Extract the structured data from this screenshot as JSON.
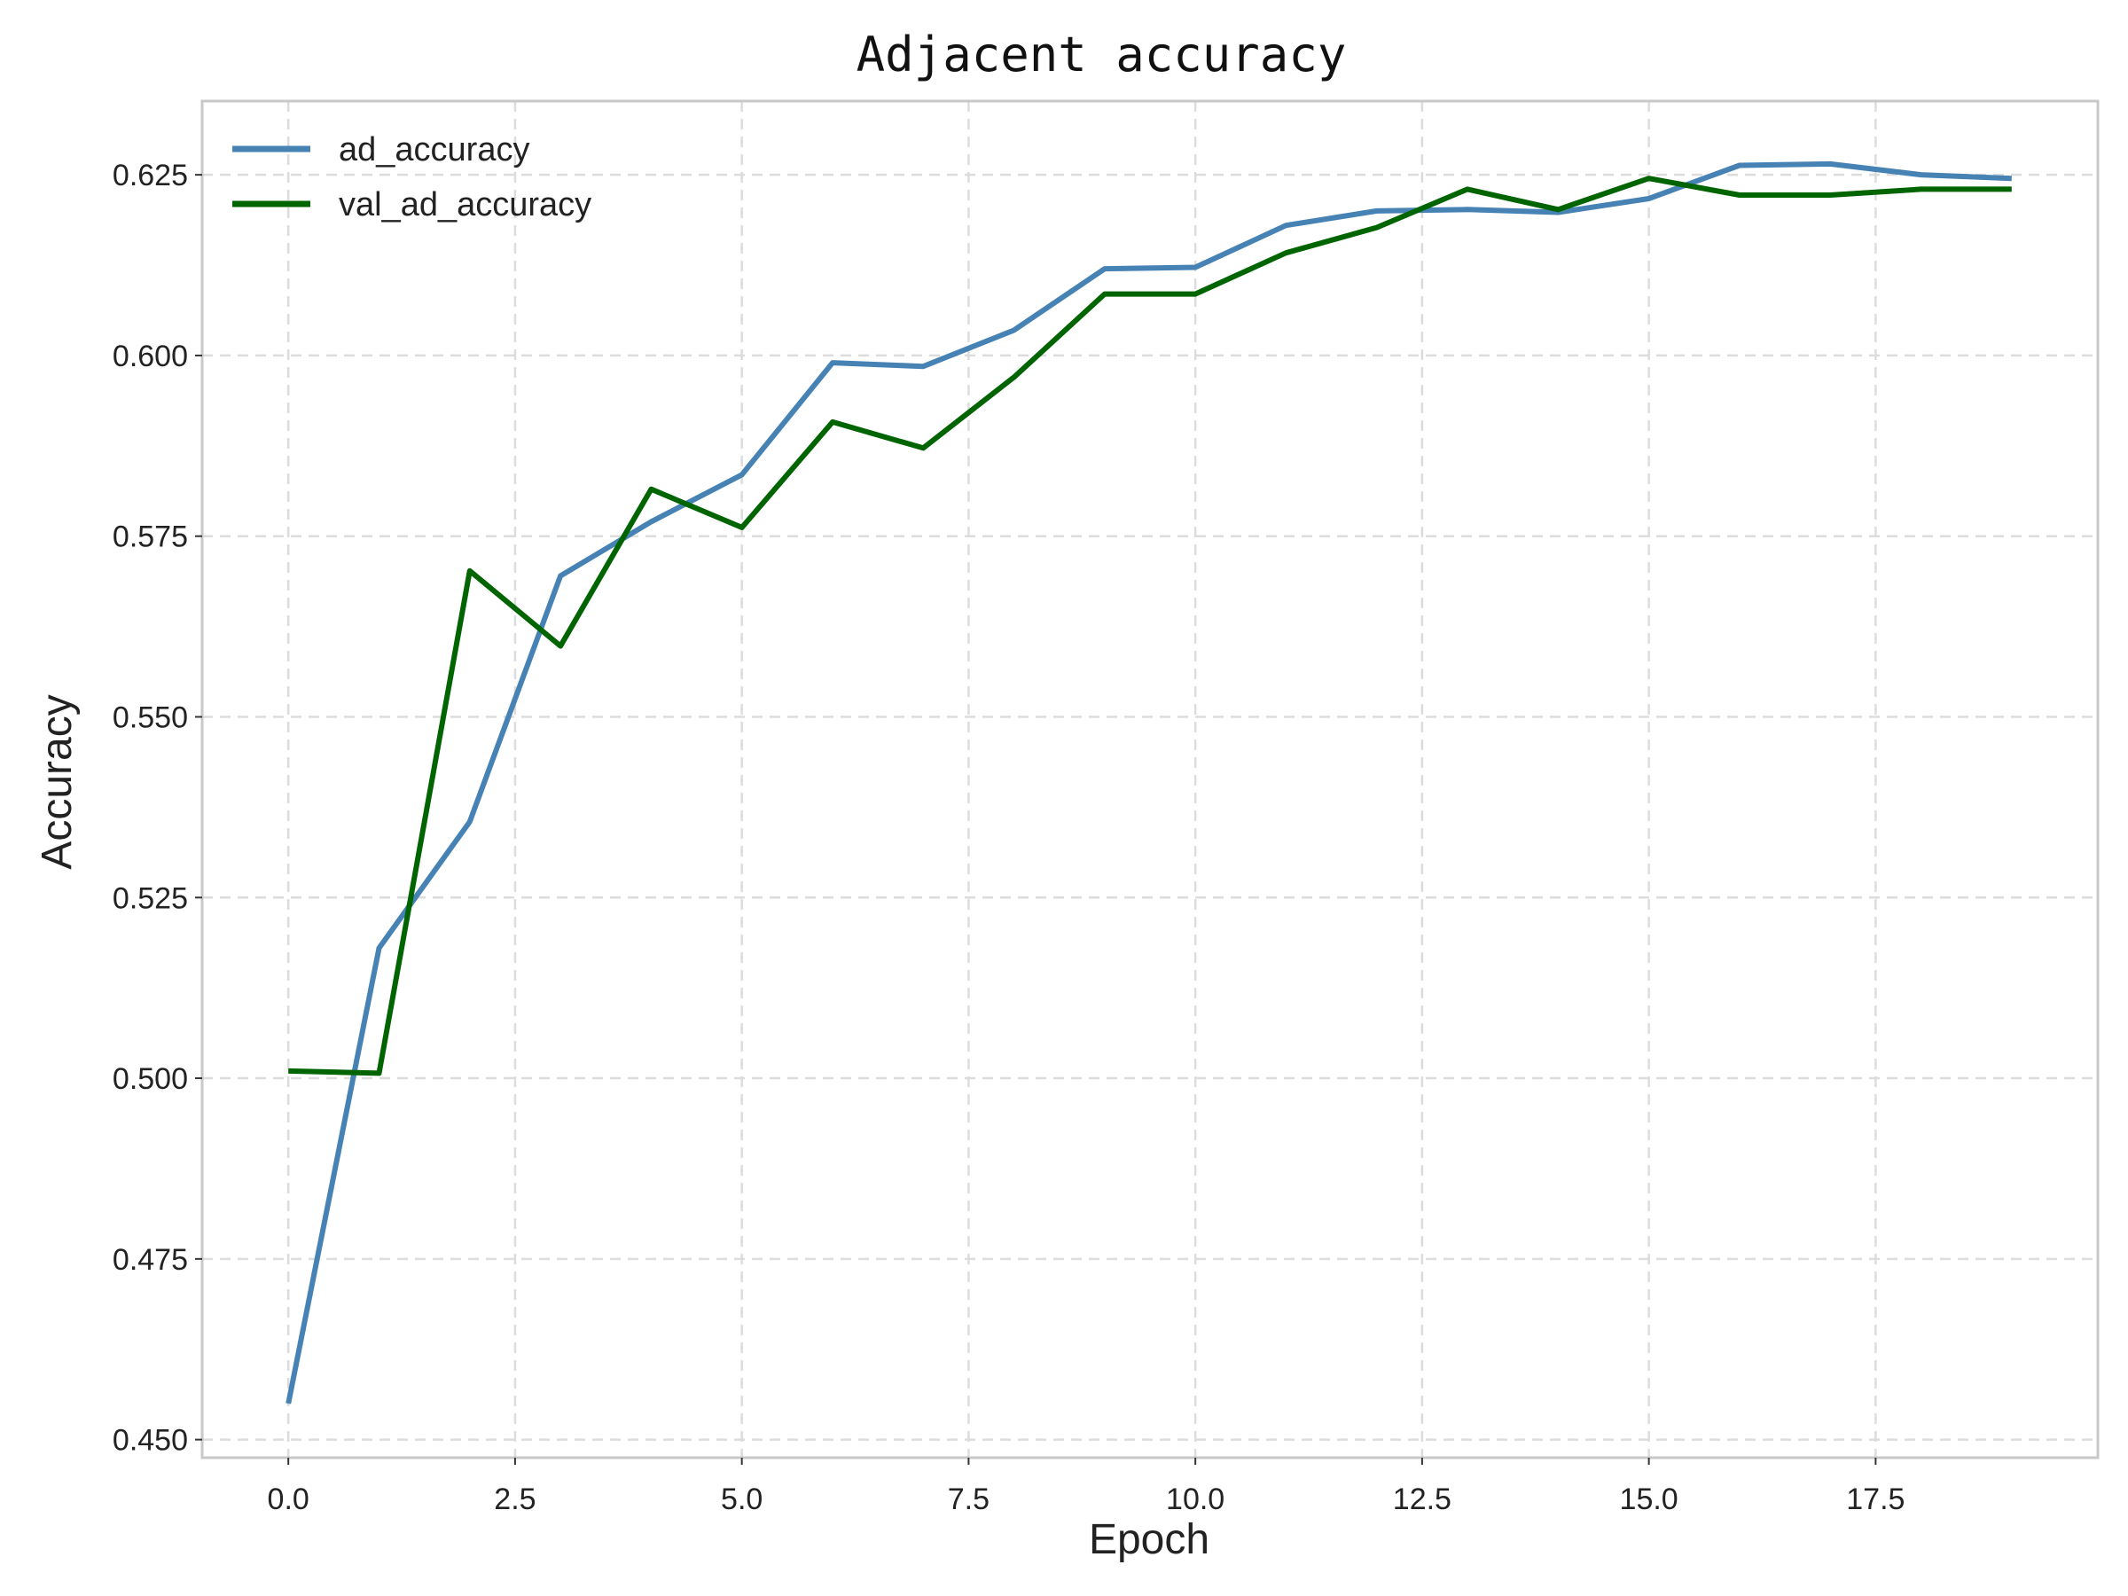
{
  "chart_data": {
    "type": "line",
    "title": "Adjacent accuracy",
    "xlabel": "Epoch",
    "ylabel": "Accuracy",
    "x": [
      0,
      1,
      2,
      3,
      4,
      5,
      6,
      7,
      8,
      9,
      10,
      11,
      12,
      13,
      14,
      15,
      16,
      17,
      18,
      19
    ],
    "xlim": [
      -0.95,
      19.95
    ],
    "ylim": [
      0.4475,
      0.6352
    ],
    "xticks": [
      0.0,
      2.5,
      5.0,
      7.5,
      10.0,
      12.5,
      15.0,
      17.5
    ],
    "xtick_labels": [
      "0.0",
      "2.5",
      "5.0",
      "7.5",
      "10.0",
      "12.5",
      "15.0",
      "17.5"
    ],
    "yticks": [
      0.45,
      0.475,
      0.5,
      0.525,
      0.55,
      0.575,
      0.6,
      0.625
    ],
    "ytick_labels": [
      "0.450",
      "0.475",
      "0.500",
      "0.525",
      "0.550",
      "0.575",
      "0.600",
      "0.625"
    ],
    "grid": true,
    "legend_position": "top-left",
    "series": [
      {
        "name": "ad_accuracy",
        "color": "#4682b4",
        "values": [
          0.455,
          0.518,
          0.5355,
          0.5695,
          0.577,
          0.5835,
          0.599,
          0.5985,
          0.6035,
          0.612,
          0.6122,
          0.618,
          0.62,
          0.6202,
          0.6198,
          0.6217,
          0.6263,
          0.6265,
          0.625,
          0.6245
        ]
      },
      {
        "name": "val_ad_accuracy",
        "color": "#006400",
        "values": [
          0.501,
          0.5007,
          0.5702,
          0.5598,
          0.5815,
          0.5762,
          0.5908,
          0.5872,
          0.597,
          0.6085,
          0.6085,
          0.6142,
          0.6177,
          0.623,
          0.6202,
          0.6245,
          0.6222,
          0.6222,
          0.623,
          0.623
        ]
      }
    ]
  }
}
